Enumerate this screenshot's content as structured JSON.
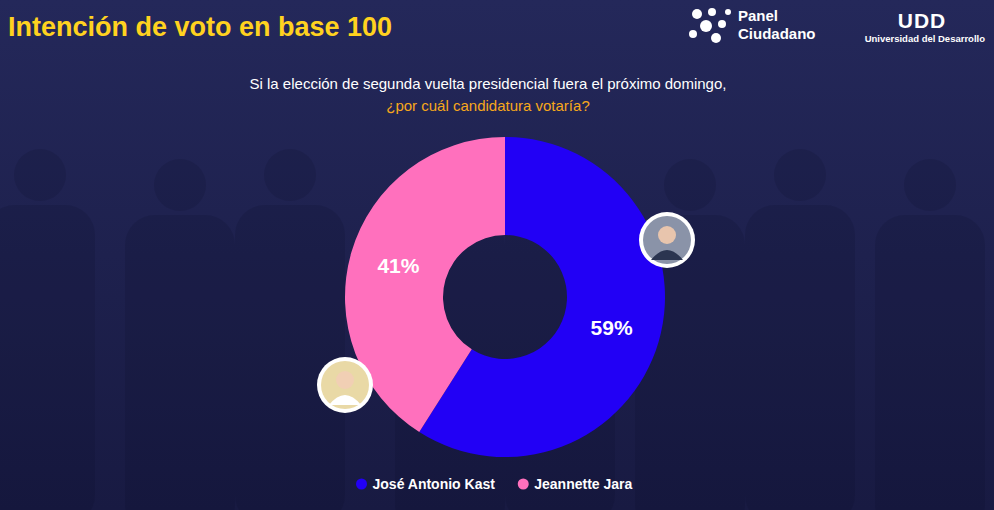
{
  "chart_data": {
    "type": "pie",
    "title": "Intención de voto en base 100",
    "subtitle": [
      "Si la elección de segunda vuelta presidencial fuera el próximo domingo,",
      "¿por cuál candidatura votaría?"
    ],
    "annotations": [
      "Panel",
      "Ciudadano",
      "UDD",
      "Universidad del Desarrollo"
    ],
    "categories": [
      "José Antonio Kast",
      "Jeannette Jara"
    ],
    "values": [
      59,
      41
    ],
    "value_labels": [
      "59%",
      "41%"
    ],
    "colors": [
      "#2200f5",
      "#ff70bd"
    ],
    "data_labels": true,
    "legend": "bottom"
  }
}
